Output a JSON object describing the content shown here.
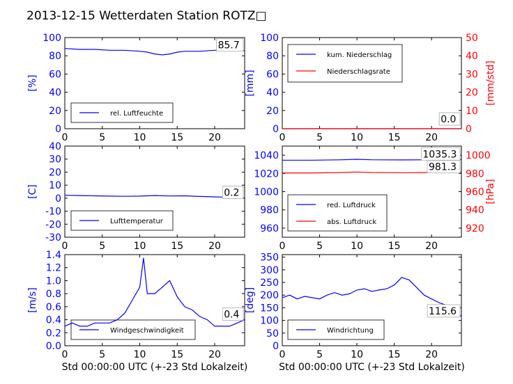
{
  "page": {
    "title": "2013-12-15 Wetterdaten Station ROTZ□"
  },
  "chart_data": [
    {
      "id": "humidity",
      "type": "line",
      "ylabel": "[%]",
      "xlim": [
        0,
        24
      ],
      "ylim": [
        0,
        100
      ],
      "xticks": [
        0,
        5,
        10,
        15,
        20
      ],
      "yticks": [
        0,
        20,
        40,
        60,
        80,
        100
      ],
      "legend": "lower-left",
      "last_value_label": "85.7",
      "series": [
        {
          "name": "rel. Luftfeuchte",
          "color": "#0000ff",
          "x": [
            0,
            2,
            4,
            6,
            8,
            10,
            11,
            12,
            13,
            14,
            15,
            16,
            18,
            20,
            22,
            24
          ],
          "y": [
            88,
            87,
            87,
            86,
            86,
            85,
            84,
            82,
            81,
            82,
            84,
            85,
            85,
            86,
            86,
            85.7
          ]
        }
      ]
    },
    {
      "id": "precipitation",
      "type": "line",
      "ylabel": "[mm]",
      "y2label": "[mm/std]",
      "xlim": [
        0,
        24
      ],
      "ylim": [
        0,
        100
      ],
      "y2lim": [
        0,
        50
      ],
      "xticks": [
        0,
        5,
        10,
        15,
        20
      ],
      "yticks": [
        0,
        20,
        40,
        60,
        80,
        100
      ],
      "y2ticks": [
        0,
        10,
        20,
        30,
        40,
        50
      ],
      "legend": "upper-left",
      "last_value_labels": [
        "0.0",
        "0.0"
      ],
      "series": [
        {
          "name": "kum. Niederschlag",
          "color": "#0000ff",
          "axis": "left",
          "x": [
            0,
            24
          ],
          "y": [
            0,
            0
          ]
        },
        {
          "name": "Niederschlagsrate",
          "color": "#ff0000",
          "axis": "right",
          "x": [
            0,
            24
          ],
          "y": [
            0,
            0
          ]
        }
      ]
    },
    {
      "id": "temperature",
      "type": "line",
      "ylabel": "[C]",
      "xlim": [
        0,
        24
      ],
      "ylim": [
        -30,
        40
      ],
      "xticks": [
        0,
        5,
        10,
        15,
        20
      ],
      "yticks": [
        -30,
        -20,
        -10,
        0,
        10,
        20,
        30,
        40
      ],
      "legend": "lower-left",
      "last_value_label": "0.2",
      "series": [
        {
          "name": "Lufttemperatur",
          "color": "#0000ff",
          "x": [
            0,
            2,
            4,
            6,
            8,
            10,
            12,
            14,
            16,
            18,
            20,
            22,
            24
          ],
          "y": [
            2.2,
            2.0,
            1.8,
            1.6,
            1.4,
            1.6,
            2.0,
            1.7,
            1.8,
            1.3,
            1.0,
            0.6,
            0.2
          ]
        }
      ]
    },
    {
      "id": "pressure",
      "type": "line",
      "y2label": "[hPa]",
      "xlim": [
        0,
        24
      ],
      "ylim": [
        950,
        1050
      ],
      "y2lim": [
        910,
        1010
      ],
      "xticks": [
        0,
        5,
        10,
        15,
        20
      ],
      "yticks": [
        960,
        980,
        1000,
        1020,
        1040
      ],
      "y2ticks": [
        920,
        940,
        960,
        980,
        1000
      ],
      "legend": "lower-left",
      "last_value_labels": [
        "1035.3",
        "981.3"
      ],
      "series": [
        {
          "name": "red. Luftdruck",
          "color": "#0000ff",
          "axis": "left",
          "x": [
            0,
            4,
            8,
            10,
            12,
            16,
            20,
            24
          ],
          "y": [
            1034.5,
            1034.5,
            1035,
            1035.5,
            1035,
            1034.8,
            1035,
            1035.3
          ]
        },
        {
          "name": "abs. Luftdruck",
          "color": "#ff0000",
          "axis": "right",
          "x": [
            0,
            4,
            8,
            10,
            12,
            16,
            20,
            24
          ],
          "y": [
            980.5,
            980.5,
            981,
            981.5,
            981,
            980.8,
            981,
            981.3
          ]
        }
      ]
    },
    {
      "id": "windspeed",
      "type": "line",
      "ylabel": "[m/s]",
      "xlabel": "Std 00:00:00 UTC (+-23 Std Lokalzeit)",
      "xlim": [
        0,
        24
      ],
      "ylim": [
        0,
        1.4
      ],
      "xticks": [
        0,
        5,
        10,
        15,
        20
      ],
      "yticks": [
        0.0,
        0.2,
        0.4,
        0.6,
        0.8,
        1.0,
        1.2,
        1.4
      ],
      "legend": "lower-left",
      "last_value_label": "0.4",
      "series": [
        {
          "name": "Windgeschwindigkeit",
          "color": "#0000ff",
          "x": [
            0,
            1,
            2,
            3,
            4,
            5,
            6,
            7,
            8,
            9,
            10,
            10.5,
            11,
            12,
            13,
            14,
            15,
            16,
            17,
            18,
            19,
            20,
            21,
            22,
            23,
            24
          ],
          "y": [
            0.3,
            0.35,
            0.3,
            0.3,
            0.35,
            0.35,
            0.35,
            0.4,
            0.5,
            0.7,
            0.9,
            1.35,
            0.8,
            0.8,
            0.9,
            1.0,
            0.75,
            0.6,
            0.55,
            0.45,
            0.4,
            0.3,
            0.3,
            0.3,
            0.35,
            0.4
          ]
        }
      ]
    },
    {
      "id": "winddirection",
      "type": "line",
      "ylabel": "[deg]",
      "xlabel": "Std 00:00:00 UTC (+-23 Std Lokalzeit)",
      "xlim": [
        0,
        24
      ],
      "ylim": [
        0,
        360
      ],
      "xticks": [
        0,
        5,
        10,
        15,
        20
      ],
      "yticks": [
        0,
        50,
        100,
        150,
        200,
        250,
        300,
        350
      ],
      "legend": "lower-left",
      "last_value_label": "115.6",
      "series": [
        {
          "name": "Windrichtung",
          "color": "#0000ff",
          "x": [
            0,
            1,
            2,
            3,
            4,
            5,
            6,
            7,
            8,
            9,
            10,
            11,
            12,
            13,
            14,
            15,
            16,
            17,
            18,
            19,
            20,
            21,
            22,
            23,
            24
          ],
          "y": [
            190,
            200,
            185,
            195,
            190,
            185,
            200,
            210,
            200,
            205,
            220,
            225,
            215,
            220,
            225,
            240,
            270,
            260,
            230,
            200,
            185,
            170,
            160,
            140,
            115.6
          ]
        }
      ]
    }
  ]
}
